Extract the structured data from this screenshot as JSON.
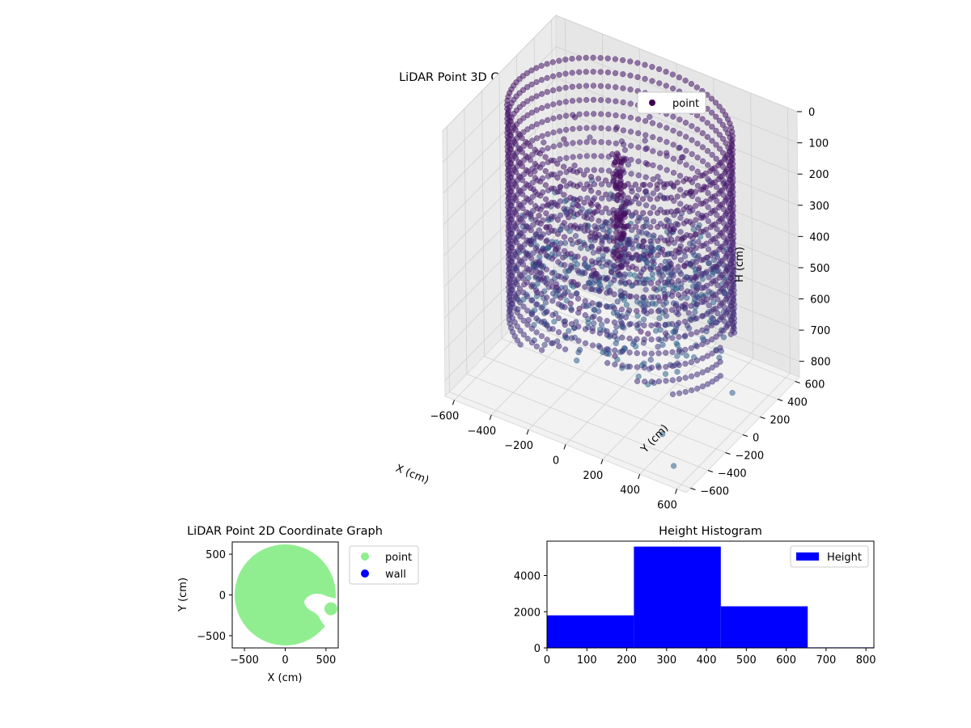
{
  "chart_data": [
    {
      "type": "scatter",
      "projection": "3d",
      "title": "LiDAR Point 3D Coordinate Graph",
      "xlabel": "X (cm)",
      "ylabel": "Y (cm)",
      "zlabel": "H (cm)",
      "x_ticks": [
        "−600",
        "−400",
        "−200",
        "0",
        "200",
        "400",
        "600"
      ],
      "y_ticks": [
        "−600",
        "−400",
        "−200",
        "0",
        "200",
        "400",
        "600"
      ],
      "z_ticks": [
        "0",
        "100",
        "200",
        "300",
        "400",
        "500",
        "600",
        "700",
        "800"
      ],
      "xlim": [
        -650,
        650
      ],
      "ylim": [
        -650,
        650
      ],
      "zlim": [
        850,
        0
      ],
      "legend": {
        "entries": [
          "point"
        ],
        "placement": "top-right"
      },
      "colormap": "viridis",
      "grid": true,
      "description_of_data": {
        "wall_radius": 550,
        "height_range": [
          0,
          820
        ],
        "outliers": [
          [
            510,
            180,
            800
          ],
          [
            420,
            -430,
            780
          ],
          [
            560,
            -600,
            800
          ]
        ]
      }
    },
    {
      "type": "scatter",
      "title": "LiDAR Point 2D Coordinate Graph",
      "xlabel": "X (cm)",
      "ylabel": "Y (cm)",
      "x_ticks": [
        "−500",
        "0",
        "500"
      ],
      "y_ticks": [
        "−500",
        "0",
        "500"
      ],
      "xlim": [
        -650,
        650
      ],
      "ylim": [
        -650,
        650
      ],
      "series": [
        {
          "name": "point",
          "color": "#90ee90"
        },
        {
          "name": "wall",
          "color": "#0000ff"
        }
      ],
      "legend": {
        "entries": [
          "point",
          "wall"
        ],
        "placement": "outside-right"
      },
      "grid": false
    },
    {
      "type": "bar",
      "subtype": "histogram",
      "title": "Height Histogram",
      "bin_edges": [
        0,
        218,
        436,
        654,
        820
      ],
      "values": [
        1800,
        5600,
        2300,
        30
      ],
      "x_ticks": [
        "0",
        "100",
        "200",
        "300",
        "400",
        "500",
        "600",
        "700",
        "800"
      ],
      "y_ticks": [
        "0",
        "2000",
        "4000"
      ],
      "xlim": [
        0,
        820
      ],
      "ylim": [
        0,
        5900
      ],
      "series": [
        {
          "name": "Height",
          "color": "#0000ff"
        }
      ],
      "legend": {
        "entries": [
          "Height"
        ],
        "placement": "top-right"
      },
      "grid": false
    }
  ]
}
